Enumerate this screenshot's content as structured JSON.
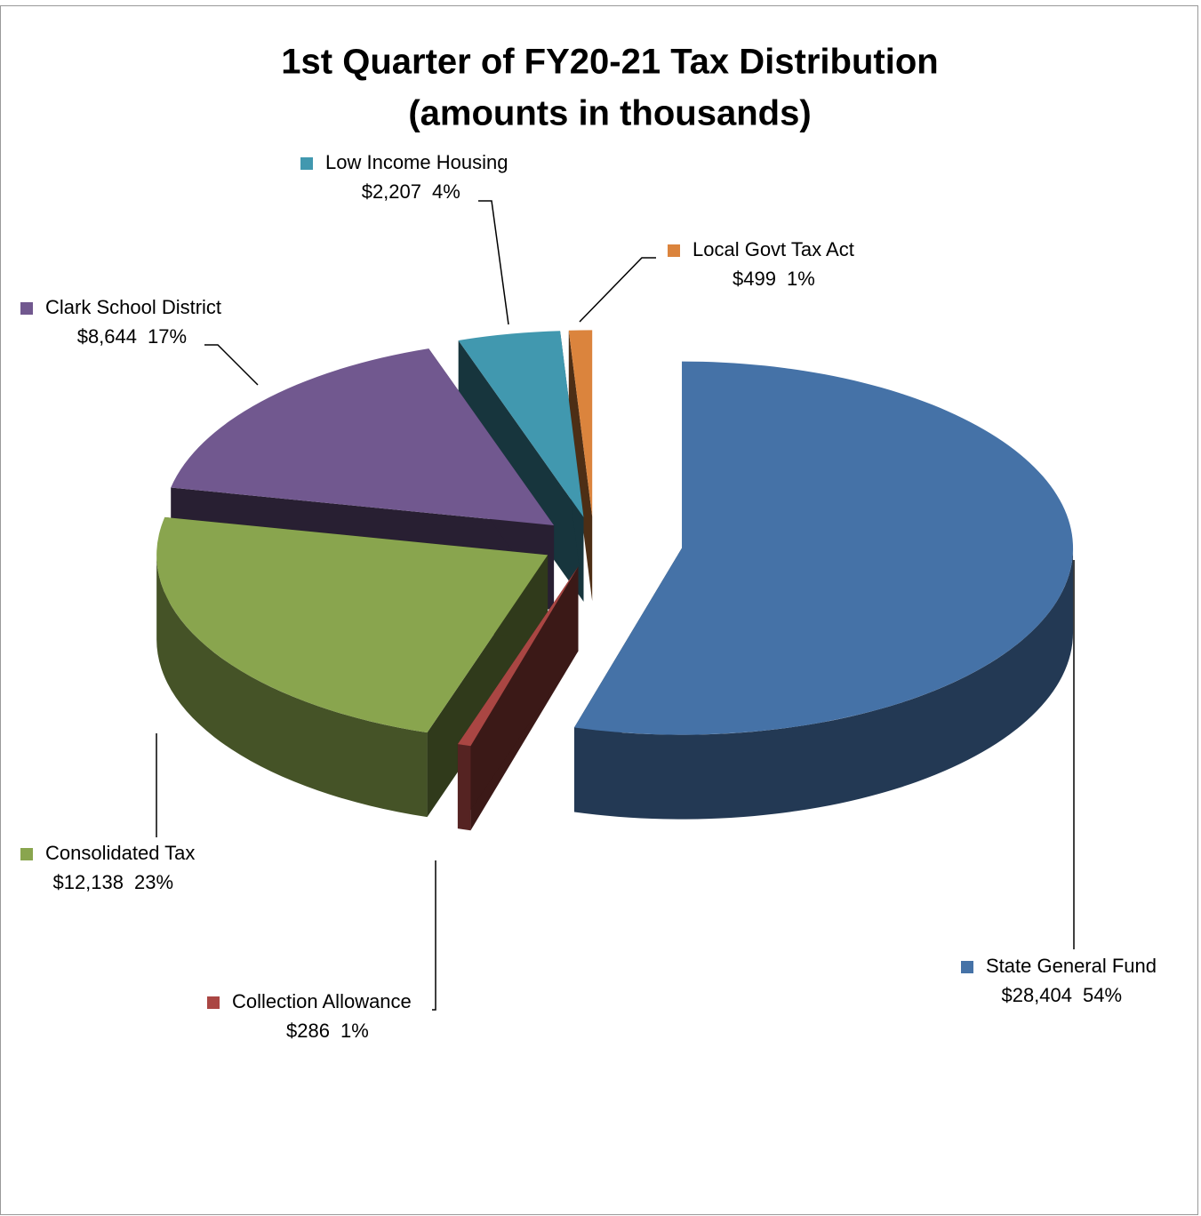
{
  "chart_data": {
    "type": "pie3d",
    "title": "1st Quarter of FY20-21 Tax Distribution",
    "subtitle": "(amounts in thousands)",
    "categories": [
      "State General Fund",
      "Collection Allowance",
      "Consolidated Tax",
      "Clark School District",
      "Low Income Housing",
      "Local Govt Tax Act"
    ],
    "values": [
      28404,
      286,
      12138,
      8644,
      2207,
      499
    ],
    "value_labels": [
      "$28,404",
      "$286",
      "$12,138",
      "$8,644",
      "$2,207",
      "$499"
    ],
    "percents": [
      54,
      1,
      23,
      17,
      4,
      1
    ],
    "percent_labels": [
      "54%",
      "1%",
      "23%",
      "17%",
      "4%",
      "1%"
    ],
    "colors": [
      "#4572a7",
      "#aa4643",
      "#89a54e",
      "#71588f",
      "#4198af",
      "#db843d"
    ]
  }
}
